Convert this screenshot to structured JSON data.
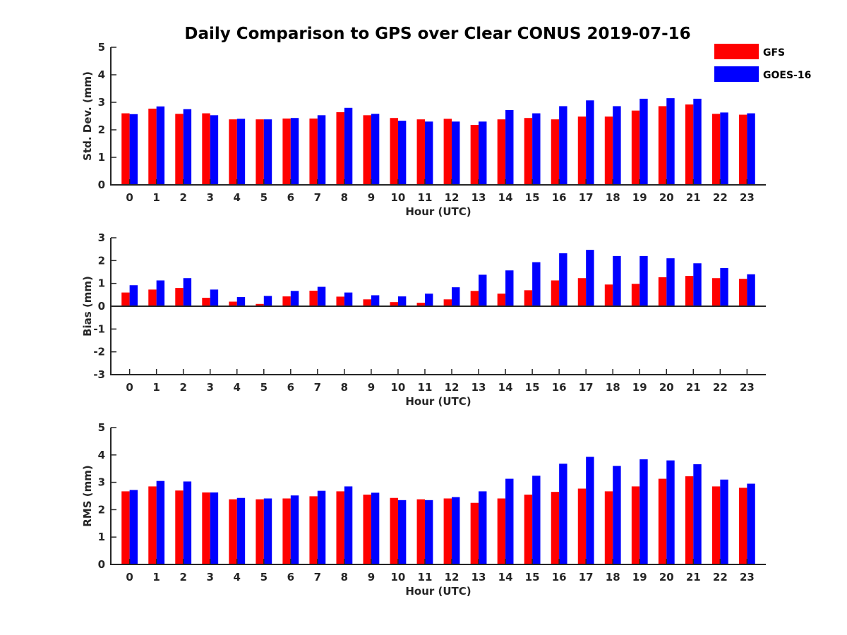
{
  "chart_data": {
    "type": "bar",
    "title": "Daily Comparison to GPS over Clear CONUS 2019-07-16",
    "legend": {
      "location": "top-right",
      "entries": [
        {
          "name": "GFS",
          "color": "#ff0000"
        },
        {
          "name": "GOES-16",
          "color": "#0000ff"
        }
      ]
    },
    "categories": [
      "0",
      "1",
      "2",
      "3",
      "4",
      "5",
      "6",
      "7",
      "8",
      "9",
      "10",
      "11",
      "12",
      "13",
      "14",
      "15",
      "16",
      "17",
      "18",
      "19",
      "20",
      "21",
      "22",
      "23"
    ],
    "panels": [
      {
        "id": "std",
        "ylabel": "Std. Dev. (mm)",
        "xlabel": "Hour (UTC)",
        "ylim": [
          0,
          5
        ],
        "yticks": [
          "0",
          "1",
          "2",
          "3",
          "4",
          "5"
        ],
        "series": [
          {
            "name": "GFS",
            "values": [
              2.6,
              2.77,
              2.58,
              2.6,
              2.38,
              2.38,
              2.41,
              2.41,
              2.64,
              2.53,
              2.43,
              2.38,
              2.4,
              2.18,
              2.38,
              2.43,
              2.38,
              2.48,
              2.48,
              2.7,
              2.86,
              2.92,
              2.58,
              2.55
            ]
          },
          {
            "name": "GOES-16",
            "values": [
              2.57,
              2.85,
              2.75,
              2.53,
              2.4,
              2.38,
              2.43,
              2.53,
              2.8,
              2.58,
              2.33,
              2.3,
              2.3,
              2.3,
              2.72,
              2.6,
              2.86,
              3.07,
              2.86,
              3.13,
              3.15,
              3.13,
              2.63,
              2.6
            ]
          }
        ]
      },
      {
        "id": "bias",
        "ylabel": "Bias (mm)",
        "xlabel": "Hour (UTC)",
        "ylim": [
          -3,
          3
        ],
        "yticks": [
          "-3",
          "-2",
          "-1",
          "0",
          "1",
          "2",
          "3"
        ],
        "series": [
          {
            "name": "GFS",
            "values": [
              0.6,
              0.73,
              0.8,
              0.37,
              0.2,
              0.1,
              0.43,
              0.68,
              0.42,
              0.3,
              0.18,
              0.15,
              0.3,
              0.67,
              0.55,
              0.7,
              1.13,
              1.23,
              0.95,
              0.98,
              1.27,
              1.33,
              1.23,
              1.2
            ]
          },
          {
            "name": "GOES-16",
            "values": [
              0.92,
              1.13,
              1.23,
              0.73,
              0.4,
              0.45,
              0.67,
              0.85,
              0.6,
              0.48,
              0.43,
              0.55,
              0.83,
              1.38,
              1.57,
              1.93,
              2.32,
              2.47,
              2.2,
              2.2,
              2.1,
              1.88,
              1.67,
              1.4
            ]
          }
        ]
      },
      {
        "id": "rms",
        "ylabel": "RMS (mm)",
        "xlabel": "Hour (UTC)",
        "ylim": [
          0,
          5
        ],
        "yticks": [
          "0",
          "1",
          "2",
          "3",
          "4",
          "5"
        ],
        "series": [
          {
            "name": "GFS",
            "values": [
              2.67,
              2.85,
              2.7,
              2.63,
              2.38,
              2.38,
              2.41,
              2.49,
              2.67,
              2.55,
              2.43,
              2.38,
              2.41,
              2.25,
              2.41,
              2.55,
              2.65,
              2.77,
              2.67,
              2.85,
              3.13,
              3.22,
              2.85,
              2.8
            ]
          },
          {
            "name": "GOES-16",
            "values": [
              2.72,
              3.05,
              3.03,
              2.63,
              2.43,
              2.41,
              2.52,
              2.69,
              2.85,
              2.62,
              2.35,
              2.35,
              2.46,
              2.67,
              3.13,
              3.24,
              3.68,
              3.93,
              3.6,
              3.84,
              3.8,
              3.66,
              3.1,
              2.95
            ]
          }
        ]
      }
    ]
  }
}
